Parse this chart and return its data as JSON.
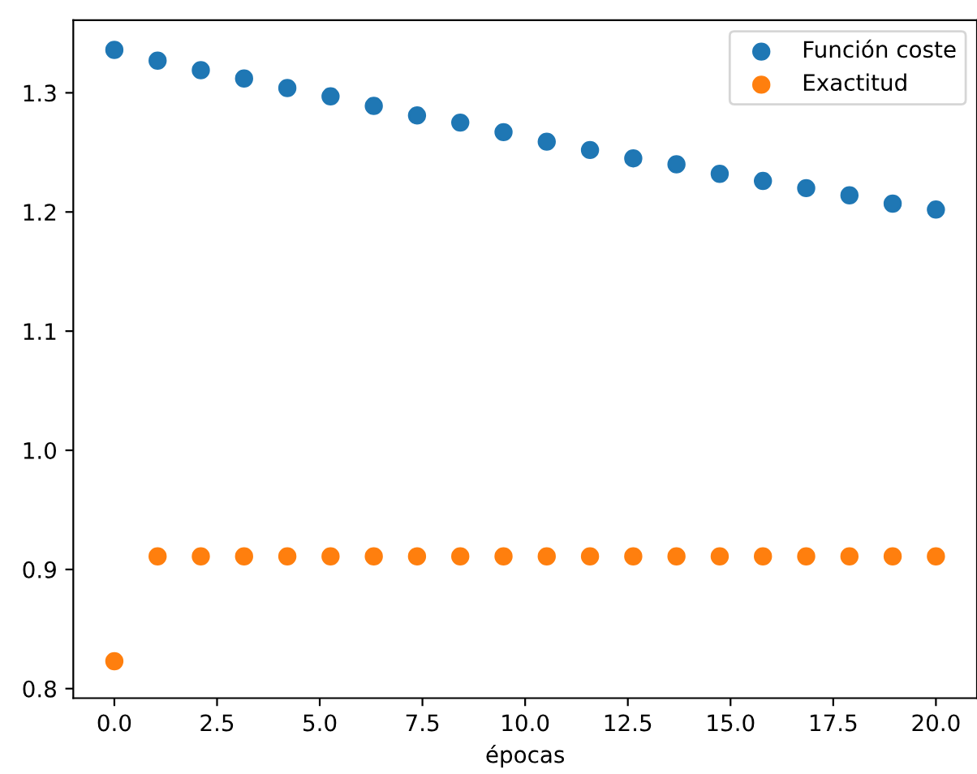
{
  "chart_data": {
    "type": "scatter",
    "xlabel": "épocas",
    "x": [
      0,
      1.053,
      2.105,
      3.158,
      4.211,
      5.263,
      6.316,
      7.368,
      8.421,
      9.474,
      10.526,
      11.579,
      12.632,
      13.684,
      14.737,
      15.789,
      16.842,
      17.895,
      18.947,
      20
    ],
    "series": [
      {
        "name": "Función coste",
        "color": "#1f77b4",
        "values": [
          1.336,
          1.327,
          1.319,
          1.312,
          1.304,
          1.297,
          1.289,
          1.281,
          1.275,
          1.267,
          1.259,
          1.252,
          1.245,
          1.24,
          1.232,
          1.226,
          1.22,
          1.214,
          1.207,
          1.202
        ]
      },
      {
        "name": "Exactitud",
        "color": "#ff7f0e",
        "values": [
          0.823,
          0.911,
          0.911,
          0.911,
          0.911,
          0.911,
          0.911,
          0.911,
          0.911,
          0.911,
          0.911,
          0.911,
          0.911,
          0.911,
          0.911,
          0.911,
          0.911,
          0.911,
          0.911,
          0.911
        ]
      }
    ],
    "xlim": [
      -1,
      21
    ],
    "ylim": [
      0.792,
      1.361
    ],
    "xticks": [
      {
        "value": 0,
        "label": "0.0"
      },
      2.5,
      {
        "value": 5,
        "label": "5.0"
      },
      7.5,
      {
        "value": 10,
        "label": "10.0"
      },
      12.5,
      {
        "value": 15,
        "label": "15.0"
      },
      17.5,
      {
        "value": 20,
        "label": "20.0"
      }
    ],
    "yticks": [
      0.8,
      0.9,
      {
        "value": 1,
        "label": "1.0"
      },
      1.1,
      1.2,
      1.3
    ],
    "grid": false,
    "legend": "top right",
    "marker": "circle"
  }
}
